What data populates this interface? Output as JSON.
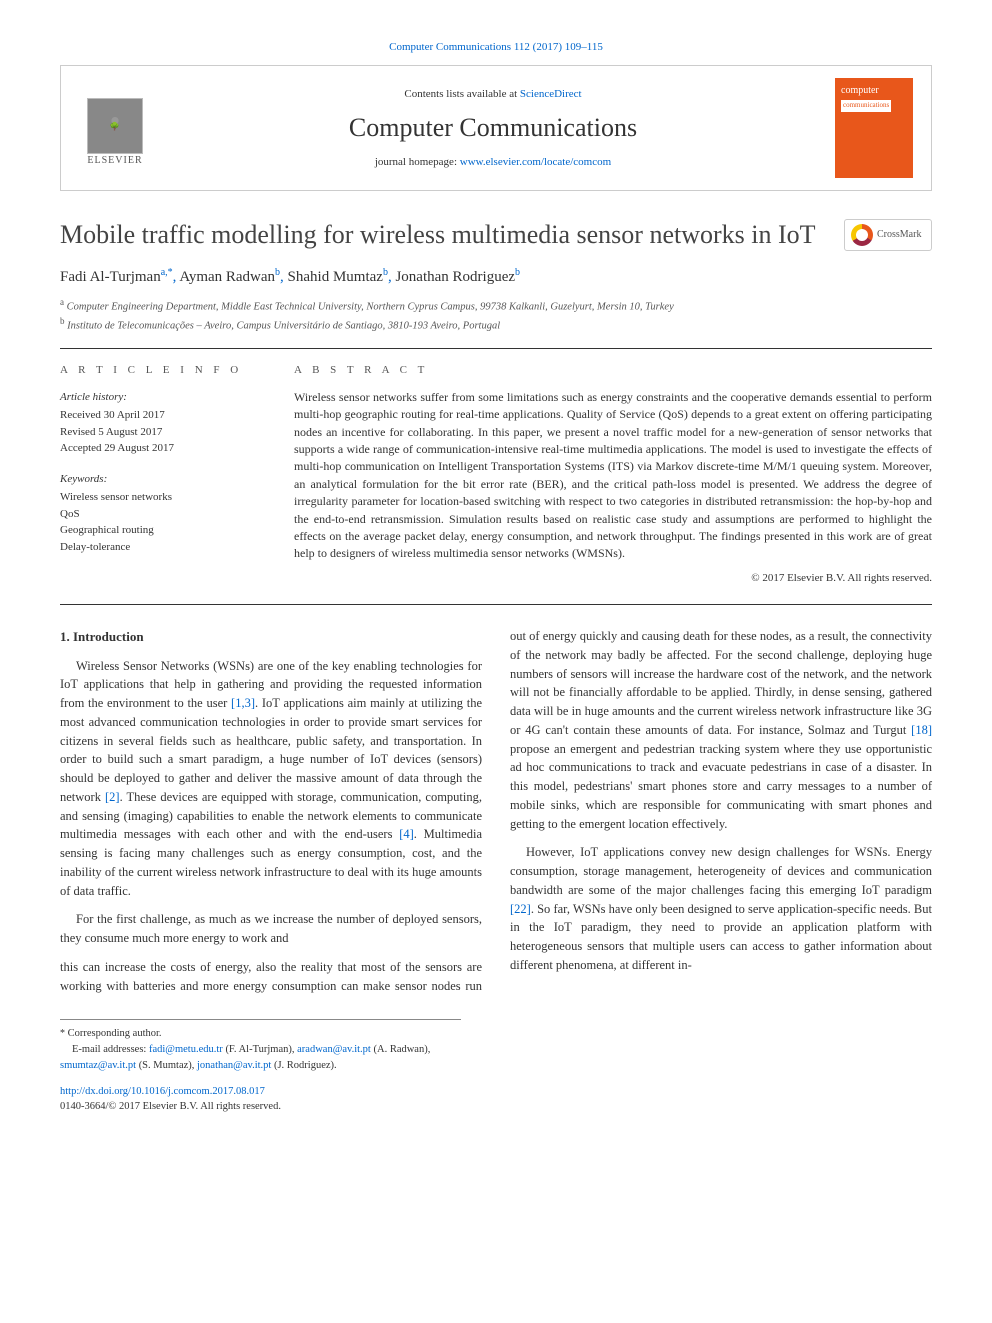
{
  "header": {
    "citation": "Computer Communications 112 (2017) 109–115",
    "contents_prefix": "Contents lists available at ",
    "contents_link": "ScienceDirect",
    "journal": "Computer Communications",
    "homepage_prefix": "journal homepage: ",
    "homepage_url": "www.elsevier.com/locate/comcom",
    "publisher": "ELSEVIER",
    "cover_title": "computer",
    "cover_sub": "communications"
  },
  "title": "Mobile traffic modelling for wireless multimedia sensor networks in IoT",
  "crossmark": "CrossMark",
  "authors": {
    "a1": {
      "name": "Fadi Al-Turjman",
      "aff": "a,",
      "mark": "*"
    },
    "a2": {
      "name": "Ayman Radwan",
      "aff": "b"
    },
    "a3": {
      "name": "Shahid Mumtaz",
      "aff": "b"
    },
    "a4": {
      "name": "Jonathan Rodriguez",
      "aff": "b"
    }
  },
  "affiliations": {
    "a": "Computer Engineering Department, Middle East Technical University, Northern Cyprus Campus, 99738 Kalkanli, Guzelyurt, Mersin 10, Turkey",
    "b": "Instituto de Telecomunicações – Aveiro, Campus Universitário de Santiago, 3810-193 Aveiro, Portugal"
  },
  "article_info": {
    "heading": "A R T I C L E   I N F O",
    "history_label": "Article history:",
    "received": "Received 30 April 2017",
    "revised": "Revised 5 August 2017",
    "accepted": "Accepted 29 August 2017",
    "keywords_label": "Keywords:",
    "kw1": "Wireless sensor networks",
    "kw2": "QoS",
    "kw3": "Geographical routing",
    "kw4": "Delay-tolerance"
  },
  "abstract": {
    "heading": "A B S T R A C T",
    "text": "Wireless sensor networks suffer from some limitations such as energy constraints and the cooperative demands essential to perform multi-hop geographic routing for real-time applications. Quality of Service (QoS) depends to a great extent on offering participating nodes an incentive for collaborating. In this paper, we present a novel traffic model for a new-generation of sensor networks that supports a wide range of communication-intensive real-time multimedia applications. The model is used to investigate the effects of multi-hop communication on Intelligent Transportation Systems (ITS) via Markov discrete-time M/M/1 queuing system. Moreover, an analytical formulation for the bit error rate (BER), and the critical path-loss model is presented. We address the degree of irregularity parameter for location-based switching with respect to two categories in distributed retransmission: the hop-by-hop and the end-to-end retransmission. Simulation results based on realistic case study and assumptions are performed to highlight the effects on the average packet delay, energy consumption, and network throughput. The findings presented in this work are of great help to designers of wireless multimedia sensor networks (WMSNs).",
    "copyright": "© 2017 Elsevier B.V. All rights reserved."
  },
  "section1": {
    "heading": "1. Introduction",
    "p1_a": "Wireless Sensor Networks (WSNs) are one of the key enabling technologies for IoT applications that help in gathering and providing the requested information from the environment to the user ",
    "p1_ref1": "[1,3]",
    "p1_b": ". IoT applications aim mainly at utilizing the most advanced communication technologies in order to provide smart services for citizens in several fields such as healthcare, public safety, and transportation. In order to build such a smart paradigm, a huge number of IoT devices (sensors) should be deployed to gather and deliver the massive amount of data through the network ",
    "p1_ref2": "[2]",
    "p1_c": ". These devices are equipped with storage, communication, computing, and sensing (imaging) capabilities to enable the network elements to communicate multimedia messages with each other and with the end-users ",
    "p1_ref3": "[4]",
    "p1_d": ". Multimedia sensing is facing many challenges such as energy consumption, cost, and the inability of the current wireless network infrastructure to deal with its huge amounts of data traffic.",
    "p2": "For the first challenge, as much as we increase the number of deployed sensors, they consume much more energy to work and",
    "p3_a": " this can increase the costs of energy, also the reality that most of the sensors are working with batteries and more energy consumption can make sensor nodes run out of energy quickly and causing death for these nodes, as a result, the connectivity of the network may badly be affected. For the second challenge, deploying huge numbers of sensors will increase the hardware cost of the network, and the network will not be financially affordable to be applied. Thirdly, in dense sensing, gathered data will be in huge amounts and the current wireless network infrastructure like 3G or 4G can't contain these amounts of data. For instance, Solmaz and Turgut ",
    "p3_ref1": "[18]",
    "p3_b": " propose an emergent and pedestrian tracking system where they use opportunistic ad hoc communications to track and evacuate pedestrians in case of a disaster. In this model, pedestrians' smart phones store and carry messages to a number of mobile sinks, which are responsible for communicating with smart phones and getting to the emergent location effectively.",
    "p4_a": "However, IoT applications convey new design challenges for WSNs. Energy consumption, storage management, heterogeneity of devices and communication bandwidth are some of the major challenges facing this emerging IoT paradigm ",
    "p4_ref1": "[22]",
    "p4_b": ". So far, WSNs have only been designed to serve application-specific needs. But in the IoT paradigm, they need to provide an application platform with heterogeneous sensors that multiple users can access to gather information about different phenomena, at different in-"
  },
  "footnotes": {
    "corr": "Corresponding author.",
    "emails_label": "E-mail addresses: ",
    "e1": "fadi@metu.edu.tr",
    "n1": " (F. Al-Turjman), ",
    "e2": "aradwan@av.it.pt",
    "n2": " (A. Radwan), ",
    "e3": "smumtaz@av.it.pt",
    "n3": " (S. Mumtaz), ",
    "e4": "jonathan@av.it.pt",
    "n4": " (J. Rodriguez)."
  },
  "doi": {
    "url": "http://dx.doi.org/10.1016/j.comcom.2017.08.017",
    "issn_line": "0140-3664/© 2017 Elsevier B.V. All rights reserved."
  },
  "colors": {
    "link": "#0066cc",
    "accent": "#e8571b",
    "text": "#333333",
    "rule": "#333333"
  }
}
